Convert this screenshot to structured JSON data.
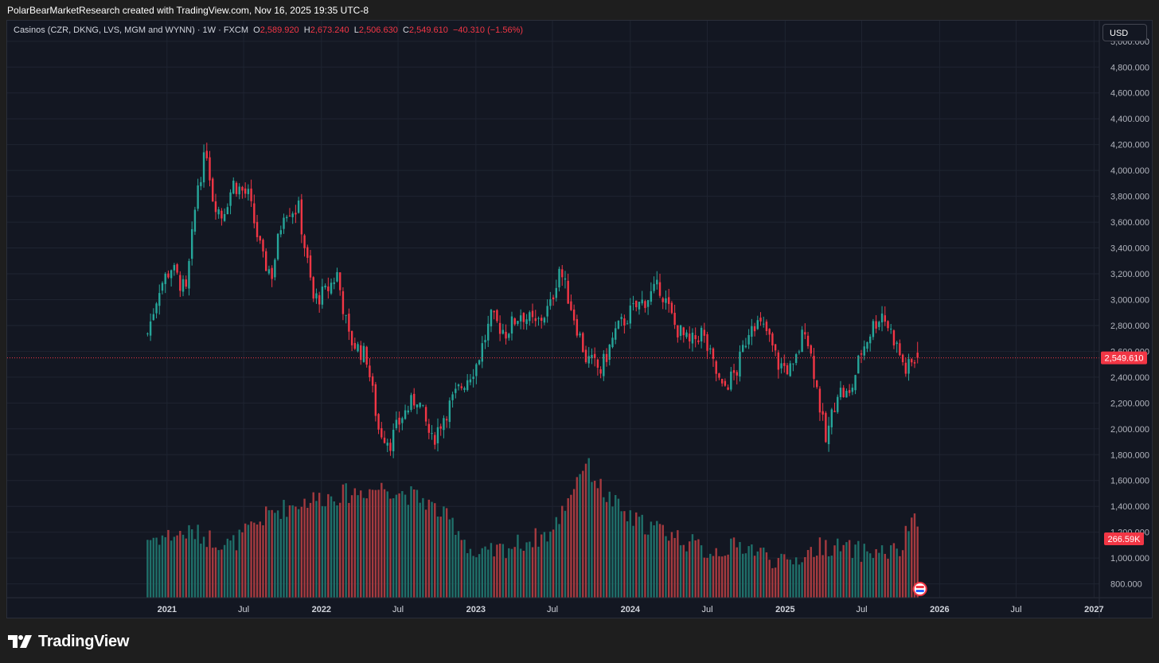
{
  "header": {
    "attribution": "PolarBearMarketResearch created with TradingView.com, Nov 16, 2025 19:35 UTC-8"
  },
  "legend": {
    "symbol": "Casinos (CZR, DKNG, LVS, MGM and WYNN) · 1W · FXCM",
    "o_label": "O",
    "o_value": "2,589.920",
    "h_label": "H",
    "h_value": "2,673.240",
    "l_label": "L",
    "l_value": "2,506.630",
    "c_label": "C",
    "c_value": "2,549.610",
    "change": "−40.310 (−1.56%)"
  },
  "currency_button": "USD",
  "price_badge": "2,549.610",
  "volume_badge": "266.59K",
  "footer": {
    "brand": "TradingView"
  },
  "colors": {
    "up": "#26a69a",
    "down": "#f23645",
    "vol_up": "#1f6f69",
    "vol_down": "#a53a3f",
    "background": "#131722",
    "grid": "#1f2431"
  },
  "chart_data": {
    "type": "candlestick",
    "title": "Casinos (CZR, DKNG, LVS, MGM and WYNN)",
    "interval": "1W",
    "source": "FXCM",
    "currency": "USD",
    "ylim": [
      700,
      5100
    ],
    "y_ticks": [
      "800.000",
      "1,000.000",
      "1,200.000",
      "1,400.000",
      "1,600.000",
      "1,800.000",
      "2,000.000",
      "2,200.000",
      "2,400.000",
      "2,600.000",
      "2,800.000",
      "3,000.000",
      "3,200.000",
      "3,400.000",
      "3,600.000",
      "3,800.000",
      "4,000.000",
      "4,200.000",
      "4,400.000",
      "4,600.000",
      "4,800.000",
      "5,000.000"
    ],
    "x_ticks": [
      "2021",
      "Jul",
      "2022",
      "Jul",
      "2023",
      "Jul",
      "2024",
      "Jul",
      "2025",
      "Jul",
      "2026",
      "Jul",
      "2027"
    ],
    "x_ticks_dates": [
      "2021-01-01",
      "2021-07-01",
      "2022-01-01",
      "2022-07-01",
      "2023-01-01",
      "2023-07-01",
      "2024-01-01",
      "2024-07-01",
      "2025-01-01",
      "2025-07-01",
      "2026-01-01",
      "2026-07-01",
      "2027-01-01"
    ],
    "first_week": "2020-11-16",
    "last_week": "2025-11-10",
    "last_candle": {
      "open": 2589.92,
      "high": 2673.24,
      "low": 2506.63,
      "close": 2549.61
    },
    "path_close": [
      [
        "2020-11-16",
        2740
      ],
      [
        "2020-12-14",
        3100
      ],
      [
        "2021-01-11",
        3250
      ],
      [
        "2021-02-15",
        3050
      ],
      [
        "2021-03-15",
        3900
      ],
      [
        "2021-04-05",
        4150
      ],
      [
        "2021-04-19",
        3800
      ],
      [
        "2021-05-10",
        3650
      ],
      [
        "2021-06-07",
        3900
      ],
      [
        "2021-07-12",
        3800
      ],
      [
        "2021-08-16",
        3300
      ],
      [
        "2021-09-06",
        3200
      ],
      [
        "2021-10-04",
        3700
      ],
      [
        "2021-11-08",
        3700
      ],
      [
        "2021-12-13",
        3000
      ],
      [
        "2022-01-10",
        3050
      ],
      [
        "2022-02-07",
        3200
      ],
      [
        "2022-03-07",
        2700
      ],
      [
        "2022-04-18",
        2550
      ],
      [
        "2022-05-16",
        2000
      ],
      [
        "2022-06-13",
        1900
      ],
      [
        "2022-07-11",
        2100
      ],
      [
        "2022-08-15",
        2250
      ],
      [
        "2022-09-19",
        1900
      ],
      [
        "2022-10-17",
        2100
      ],
      [
        "2022-11-21",
        2300
      ],
      [
        "2023-01-02",
        2500
      ],
      [
        "2023-02-06",
        2850
      ],
      [
        "2023-03-13",
        2750
      ],
      [
        "2023-04-17",
        2900
      ],
      [
        "2023-05-22",
        2800
      ],
      [
        "2023-06-26",
        2950
      ],
      [
        "2023-07-17",
        3250
      ],
      [
        "2023-08-14",
        2950
      ],
      [
        "2023-09-18",
        2550
      ],
      [
        "2023-10-23",
        2450
      ],
      [
        "2023-11-27",
        2750
      ],
      [
        "2024-01-01",
        2900
      ],
      [
        "2024-02-05",
        3000
      ],
      [
        "2024-03-11",
        3100
      ],
      [
        "2024-04-15",
        2800
      ],
      [
        "2024-05-20",
        2650
      ],
      [
        "2024-06-17",
        2750
      ],
      [
        "2024-08-05",
        2300
      ],
      [
        "2024-09-09",
        2450
      ],
      [
        "2024-10-14",
        2850
      ],
      [
        "2024-11-18",
        2750
      ],
      [
        "2024-12-16",
        2500
      ],
      [
        "2025-01-20",
        2450
      ],
      [
        "2025-02-17",
        2800
      ],
      [
        "2025-03-10",
        2450
      ],
      [
        "2025-04-07",
        1900
      ],
      [
        "2025-05-05",
        2300
      ],
      [
        "2025-06-02",
        2250
      ],
      [
        "2025-06-30",
        2600
      ],
      [
        "2025-07-28",
        2800
      ],
      [
        "2025-08-18",
        2900
      ],
      [
        "2025-09-15",
        2700
      ],
      [
        "2025-10-13",
        2450
      ],
      [
        "2025-11-10",
        2549.61
      ]
    ],
    "volume_path": [
      [
        "2020-11-16",
        1150
      ],
      [
        "2021-03-01",
        1200
      ],
      [
        "2021-06-01",
        1100
      ],
      [
        "2021-09-01",
        1350
      ],
      [
        "2021-12-01",
        1450
      ],
      [
        "2022-03-01",
        1500
      ],
      [
        "2022-06-01",
        1550
      ],
      [
        "2022-09-01",
        1450
      ],
      [
        "2022-11-15",
        1250
      ],
      [
        "2023-01-01",
        1000
      ],
      [
        "2023-04-01",
        1100
      ],
      [
        "2023-07-01",
        1200
      ],
      [
        "2023-09-15",
        1750
      ],
      [
        "2023-11-01",
        1500
      ],
      [
        "2024-01-01",
        1300
      ],
      [
        "2024-04-01",
        1200
      ],
      [
        "2024-07-01",
        1050
      ],
      [
        "2024-10-01",
        1100
      ],
      [
        "2025-01-01",
        950
      ],
      [
        "2025-04-01",
        1100
      ],
      [
        "2025-07-01",
        1050
      ],
      [
        "2025-10-01",
        1050
      ],
      [
        "2025-11-03",
        1380
      ],
      [
        "2025-11-10",
        1170
      ]
    ],
    "volume_badge": "266.59K",
    "grid": true
  }
}
